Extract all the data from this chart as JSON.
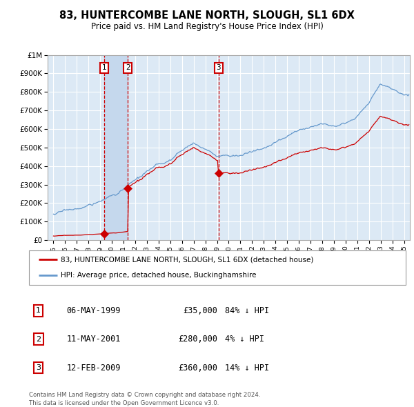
{
  "title": "83, HUNTERCOMBE LANE NORTH, SLOUGH, SL1 6DX",
  "subtitle": "Price paid vs. HM Land Registry's House Price Index (HPI)",
  "plot_bg_color": "#dce9f5",
  "grid_color": "#ffffff",
  "purchases": [
    {
      "label": "1",
      "date_num": 1999.35,
      "price": 35000,
      "hpi_desc": "84% ↓ HPI",
      "date_str": "06-MAY-1999"
    },
    {
      "label": "2",
      "date_num": 2001.36,
      "price": 280000,
      "hpi_desc": "4% ↓ HPI",
      "date_str": "11-MAY-2001"
    },
    {
      "label": "3",
      "date_num": 2009.12,
      "price": 360000,
      "hpi_desc": "14% ↓ HPI",
      "date_str": "12-FEB-2009"
    }
  ],
  "ylim": [
    0,
    1000000
  ],
  "xlim": [
    1994.5,
    2025.5
  ],
  "yticks": [
    0,
    100000,
    200000,
    300000,
    400000,
    500000,
    600000,
    700000,
    800000,
    900000,
    1000000
  ],
  "ytick_labels": [
    "£0",
    "£100K",
    "£200K",
    "£300K",
    "£400K",
    "£500K",
    "£600K",
    "£700K",
    "£800K",
    "£900K",
    "£1M"
  ],
  "legend_line1": "83, HUNTERCOMBE LANE NORTH, SLOUGH, SL1 6DX (detached house)",
  "legend_line2": "HPI: Average price, detached house, Buckinghamshire",
  "footer": "Contains HM Land Registry data © Crown copyright and database right 2024.\nThis data is licensed under the Open Government Licence v3.0.",
  "red_line_color": "#cc0000",
  "blue_line_color": "#6699cc",
  "highlight_bg_color": "#c5d8ed",
  "hpi_key_years": [
    1995,
    1997,
    1999,
    2001,
    2003,
    2005,
    2007,
    2009,
    2011,
    2013,
    2015,
    2017,
    2019,
    2021,
    2022,
    2023,
    2024,
    2025
  ],
  "hpi_key_vals": [
    140000,
    165000,
    200000,
    270000,
    350000,
    400000,
    500000,
    415000,
    430000,
    460000,
    520000,
    580000,
    600000,
    660000,
    740000,
    840000,
    810000,
    790000
  ],
  "noise_seed": 17,
  "noise_scale": 2500
}
